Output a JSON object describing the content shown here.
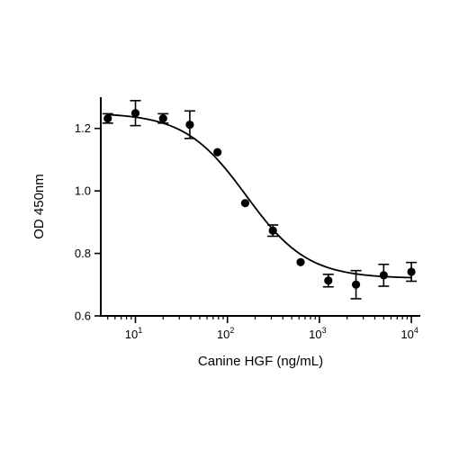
{
  "chart_data": {
    "type": "scatter",
    "xlabel": "Canine HGF (ng/mL)",
    "ylabel": "OD 450nm",
    "xscale": "log",
    "xlim": [
      4.2,
      12500
    ],
    "ylim": [
      0.6,
      1.3
    ],
    "grid": false,
    "x_ticks": [
      {
        "value": 10,
        "base": "10",
        "exp": "1"
      },
      {
        "value": 100,
        "base": "10",
        "exp": "2"
      },
      {
        "value": 1000,
        "base": "10",
        "exp": "3"
      },
      {
        "value": 10000,
        "base": "10",
        "exp": "4"
      }
    ],
    "y_ticks": [
      {
        "value": 0.6,
        "label": "0.6"
      },
      {
        "value": 0.8,
        "label": "0.8"
      },
      {
        "value": 1.0,
        "label": "1.0"
      },
      {
        "value": 1.2,
        "label": "1.2"
      }
    ],
    "series": [
      {
        "points": [
          {
            "x": 5,
            "y": 1.232,
            "err": 0.015
          },
          {
            "x": 10,
            "y": 1.249,
            "err": 0.04
          },
          {
            "x": 20,
            "y": 1.232,
            "err": 0.015
          },
          {
            "x": 39,
            "y": 1.212,
            "err": 0.044
          },
          {
            "x": 78,
            "y": 1.124,
            "err": 0.0
          },
          {
            "x": 156,
            "y": 0.961,
            "err": 0.0
          },
          {
            "x": 312,
            "y": 0.873,
            "err": 0.018
          },
          {
            "x": 625,
            "y": 0.772,
            "err": 0.0
          },
          {
            "x": 1250,
            "y": 0.713,
            "err": 0.02
          },
          {
            "x": 2500,
            "y": 0.7,
            "err": 0.045
          },
          {
            "x": 5000,
            "y": 0.73,
            "err": 0.035
          },
          {
            "x": 10000,
            "y": 0.741,
            "err": 0.03
          }
        ],
        "fit": {
          "model": "4PL",
          "top": 1.25,
          "bottom": 0.72,
          "ec50": 160,
          "hill": 1.3
        }
      }
    ]
  }
}
